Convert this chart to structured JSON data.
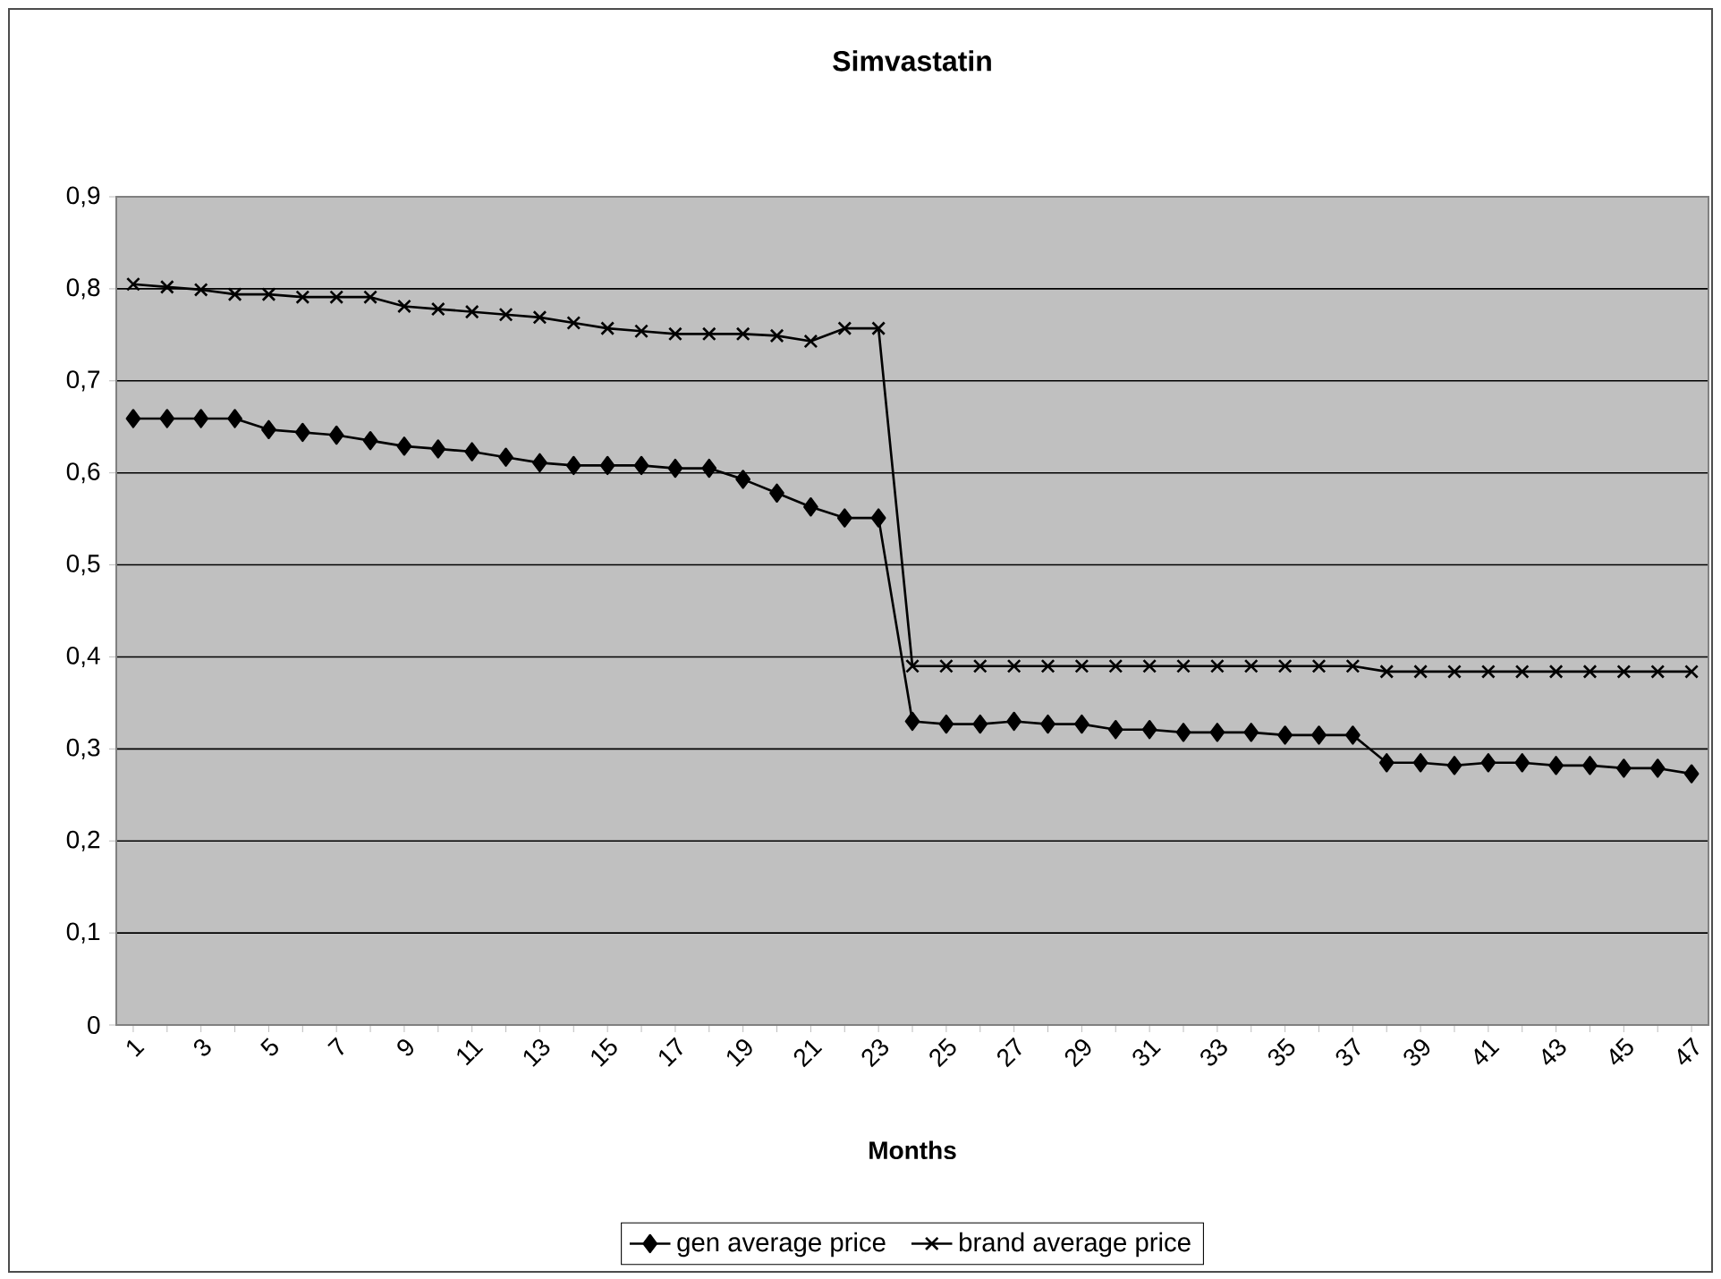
{
  "chart_data": {
    "type": "line",
    "title": "Simvastatin",
    "xlabel": "Months",
    "categories": [
      "1",
      null,
      "3",
      null,
      "5",
      null,
      "7",
      null,
      "9",
      null,
      "11",
      null,
      "13",
      null,
      "15",
      null,
      "17",
      null,
      "19",
      null,
      "21",
      null,
      "23",
      null,
      "25",
      null,
      "27",
      null,
      "29",
      null,
      "31",
      null,
      "33",
      null,
      "35",
      null,
      "37",
      null,
      "39",
      null,
      "41",
      null,
      "43",
      null,
      "45",
      null,
      "47"
    ],
    "series": [
      {
        "name": "gen average price",
        "color": "#000000",
        "marker": "diamond",
        "values": [
          0.659,
          0.659,
          0.659,
          0.659,
          0.647,
          0.644,
          0.641,
          0.635,
          0.629,
          0.626,
          0.623,
          0.617,
          0.611,
          0.608,
          0.608,
          0.608,
          0.605,
          0.605,
          0.593,
          0.578,
          0.563,
          0.551,
          0.551,
          0.33,
          0.327,
          0.327,
          0.33,
          0.327,
          0.327,
          0.321,
          0.321,
          0.318,
          0.318,
          0.318,
          0.315,
          0.315,
          0.315,
          0.285,
          0.285,
          0.282,
          0.285,
          0.285,
          0.282,
          0.282,
          0.279,
          0.279,
          0.273
        ]
      },
      {
        "name": "brand average price",
        "color": "#000000",
        "marker": "cross",
        "values": [
          0.805,
          0.802,
          0.799,
          0.794,
          0.794,
          0.791,
          0.791,
          0.791,
          0.781,
          0.778,
          0.775,
          0.772,
          0.769,
          0.763,
          0.757,
          0.754,
          0.751,
          0.751,
          0.751,
          0.749,
          0.743,
          0.757,
          0.757,
          0.39,
          0.39,
          0.39,
          0.39,
          0.39,
          0.39,
          0.39,
          0.39,
          0.39,
          0.39,
          0.39,
          0.39,
          0.39,
          0.39,
          0.384,
          0.384,
          0.384,
          0.384,
          0.384,
          0.384,
          0.384,
          0.384,
          0.384,
          0.384
        ]
      }
    ],
    "ylim": [
      0,
      0.9
    ],
    "yticks": [
      0,
      {
        "value": 0.1,
        "label": "0,1"
      },
      {
        "value": 0.2,
        "label": "0,2"
      },
      {
        "value": 0.3,
        "label": "0,3"
      },
      {
        "value": 0.4,
        "label": "0,4"
      },
      {
        "value": 0.5,
        "label": "0,5"
      },
      {
        "value": 0.6,
        "label": "0,6"
      },
      {
        "value": 0.7,
        "label": "0,7"
      },
      {
        "value": 0.8,
        "label": "0,8"
      },
      {
        "value": 0.9,
        "label": "0,9"
      }
    ],
    "grid": "y",
    "legend": "bottom",
    "line_style": "solid"
  }
}
